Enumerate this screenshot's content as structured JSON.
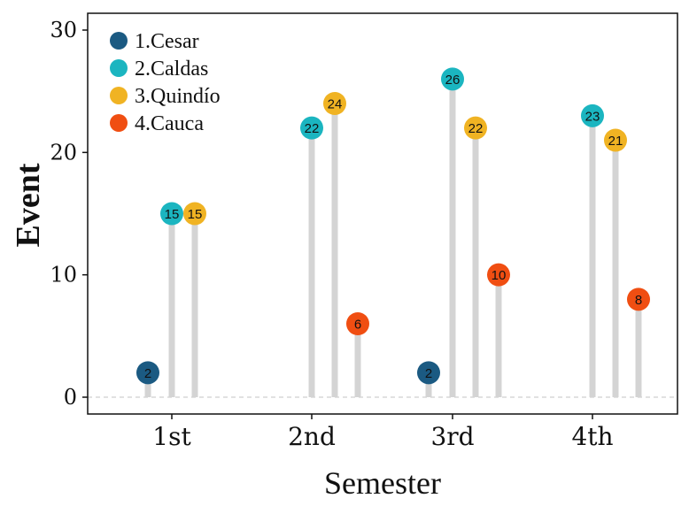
{
  "chart_data": {
    "type": "lollipop",
    "title": "",
    "xlabel": "Semester",
    "ylabel": "Event",
    "categories": [
      "1st",
      "2nd",
      "3rd",
      "4th"
    ],
    "ylim": [
      0,
      30
    ],
    "yticks": [
      0,
      10,
      20,
      30
    ],
    "grid": false,
    "legend_position": "top-left",
    "series": [
      {
        "name": "1.Cesar",
        "color": "#1b5a82",
        "values": [
          2,
          null,
          2,
          null
        ]
      },
      {
        "name": "2.Caldas",
        "color": "#1bb5c0",
        "values": [
          15,
          22,
          26,
          23
        ]
      },
      {
        "name": "3.Quindío",
        "color": "#f0b323",
        "values": [
          15,
          24,
          22,
          21
        ]
      },
      {
        "name": "4.Cauca",
        "color": "#f04e12",
        "values": [
          null,
          6,
          10,
          8
        ]
      }
    ],
    "stem_color": "#d4d4d4",
    "reference_line": {
      "y": 0,
      "style": "dashed"
    }
  }
}
